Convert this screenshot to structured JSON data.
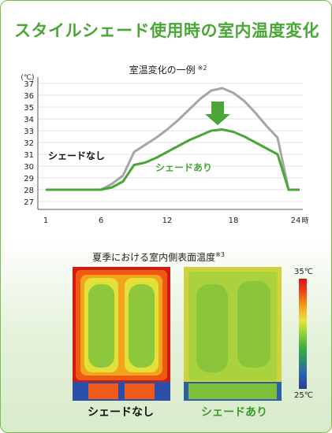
{
  "header": {
    "title": "スタイルシェード使用時の室内温度変化"
  },
  "chart_data": {
    "type": "line",
    "title": "室温変化の一例",
    "title_note": "※2",
    "ylabel": "(℃)",
    "xlabel_unit": "時",
    "ylim": [
      27,
      37
    ],
    "xlim": [
      1,
      24
    ],
    "y_ticks": [
      27,
      28,
      29,
      30,
      31,
      32,
      33,
      34,
      35,
      36,
      37
    ],
    "x_ticks": [
      1,
      6,
      12,
      18,
      24
    ],
    "series": [
      {
        "name": "シェードなし",
        "color": "#a6a6a6",
        "x": [
          1,
          6,
          7,
          8,
          9,
          10,
          11,
          12,
          13,
          14,
          15,
          16,
          17,
          18,
          19,
          20,
          21,
          22,
          23,
          24
        ],
        "y": [
          28,
          28,
          28.5,
          29.2,
          31.2,
          31.8,
          32.4,
          33.1,
          33.9,
          34.8,
          35.7,
          36.4,
          36.6,
          36.2,
          35.5,
          34.5,
          33.4,
          32.4,
          28,
          28
        ]
      },
      {
        "name": "シェードあり",
        "color": "#4aa636",
        "x": [
          1,
          6,
          7,
          8,
          9,
          10,
          11,
          12,
          13,
          14,
          15,
          16,
          17,
          18,
          19,
          20,
          21,
          22,
          23,
          24
        ],
        "y": [
          28,
          28,
          28.2,
          28.7,
          30.1,
          30.3,
          30.7,
          31.2,
          31.7,
          32.2,
          32.6,
          33,
          33.1,
          32.9,
          32.5,
          32,
          31.5,
          31,
          28,
          28
        ]
      }
    ],
    "annotation": "down-arrow-green"
  },
  "thermo": {
    "title": "夏季における室内側表面温度",
    "title_note": "※3",
    "scale_max": "35℃",
    "scale_min": "25℃",
    "label_without": "シェードなし",
    "label_with": "シェードあり"
  }
}
